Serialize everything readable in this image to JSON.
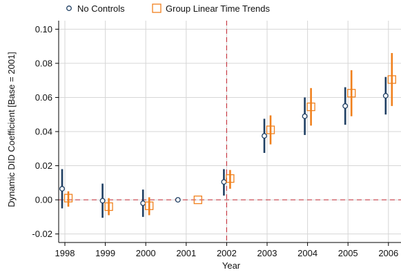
{
  "colors": {
    "series_no_controls": "#1f3f63",
    "series_group_trends": "#f0801c",
    "grid": "#d6d6d6",
    "reference_line": "#c83c46",
    "axis": "#000000"
  },
  "chart_data": {
    "type": "scatter",
    "title": "",
    "xlabel": "Year",
    "ylabel": "Dynamic DID Coefficient [Base = 2001]",
    "categories": [
      "1998",
      "1999",
      "2000",
      "2001",
      "2002",
      "2003",
      "2004",
      "2005",
      "2006"
    ],
    "ylim": [
      -0.025,
      0.105
    ],
    "yticks": [
      -0.02,
      0.0,
      0.02,
      0.04,
      0.06,
      0.08,
      0.1
    ],
    "ytick_labels": [
      "-0.02",
      "0.00",
      "0.02",
      "0.04",
      "0.06",
      "0.08",
      "0.10"
    ],
    "grid": true,
    "legend_position": "top",
    "reference_lines": {
      "y": 0,
      "x_category": "2002"
    },
    "series": [
      {
        "name": "No Controls",
        "marker": "circle",
        "values": [
          0.0065,
          -0.0005,
          -0.002,
          0.0,
          0.0105,
          0.0375,
          0.049,
          0.055,
          0.061
        ],
        "ci_low": [
          -0.005,
          -0.0105,
          -0.01,
          0.0,
          0.0025,
          0.0275,
          0.038,
          0.044,
          0.05
        ],
        "ci_high": [
          0.018,
          0.0095,
          0.006,
          0.0,
          0.018,
          0.0475,
          0.06,
          0.066,
          0.072
        ]
      },
      {
        "name": "Group Linear Time Trends",
        "marker": "square",
        "values": [
          0.001,
          -0.004,
          -0.0035,
          0.0,
          0.0125,
          0.041,
          0.0545,
          0.0625,
          0.0705
        ],
        "ci_low": [
          -0.004,
          -0.009,
          -0.009,
          0.0,
          0.0065,
          0.0325,
          0.0435,
          0.049,
          0.055
        ],
        "ci_high": [
          0.005,
          0.001,
          0.0015,
          0.0,
          0.0175,
          0.0495,
          0.0655,
          0.076,
          0.086
        ]
      }
    ]
  }
}
